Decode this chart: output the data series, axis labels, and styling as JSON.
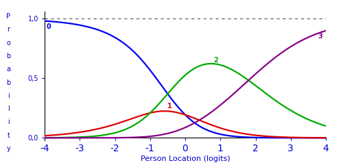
{
  "x_min": -4,
  "x_max": 4,
  "y_min": 0.0,
  "y_max": 1.0,
  "xlabel": "Person Location (logits)",
  "ylabel_letters": [
    "P",
    "r",
    "o",
    "b",
    "a",
    "b",
    "i",
    "l",
    "i",
    "t",
    "y"
  ],
  "x_ticks": [
    -4,
    -3,
    -2,
    -1,
    0,
    1,
    2,
    3,
    4
  ],
  "y_ticks": [
    0.0,
    0.5,
    1.0
  ],
  "y_tick_labels": [
    "0,0",
    "0,5",
    "1,0"
  ],
  "d1": -0.5,
  "d2": 0.5,
  "d3": 1.5,
  "colors": {
    "cat0": "#0000ee",
    "cat1": "#dd0000",
    "cat2": "#00aa00",
    "cat3": "#880088"
  },
  "labels": {
    "cat0": "0",
    "cat1": "1",
    "cat2": "2",
    "cat3": "3"
  },
  "background": "#ffffff",
  "label_color": "#0000cc",
  "tick_color": "#0000cc",
  "dashed_color": "#555555",
  "lw": 1.6,
  "figsize": [
    5.0,
    2.41
  ],
  "dpi": 100
}
